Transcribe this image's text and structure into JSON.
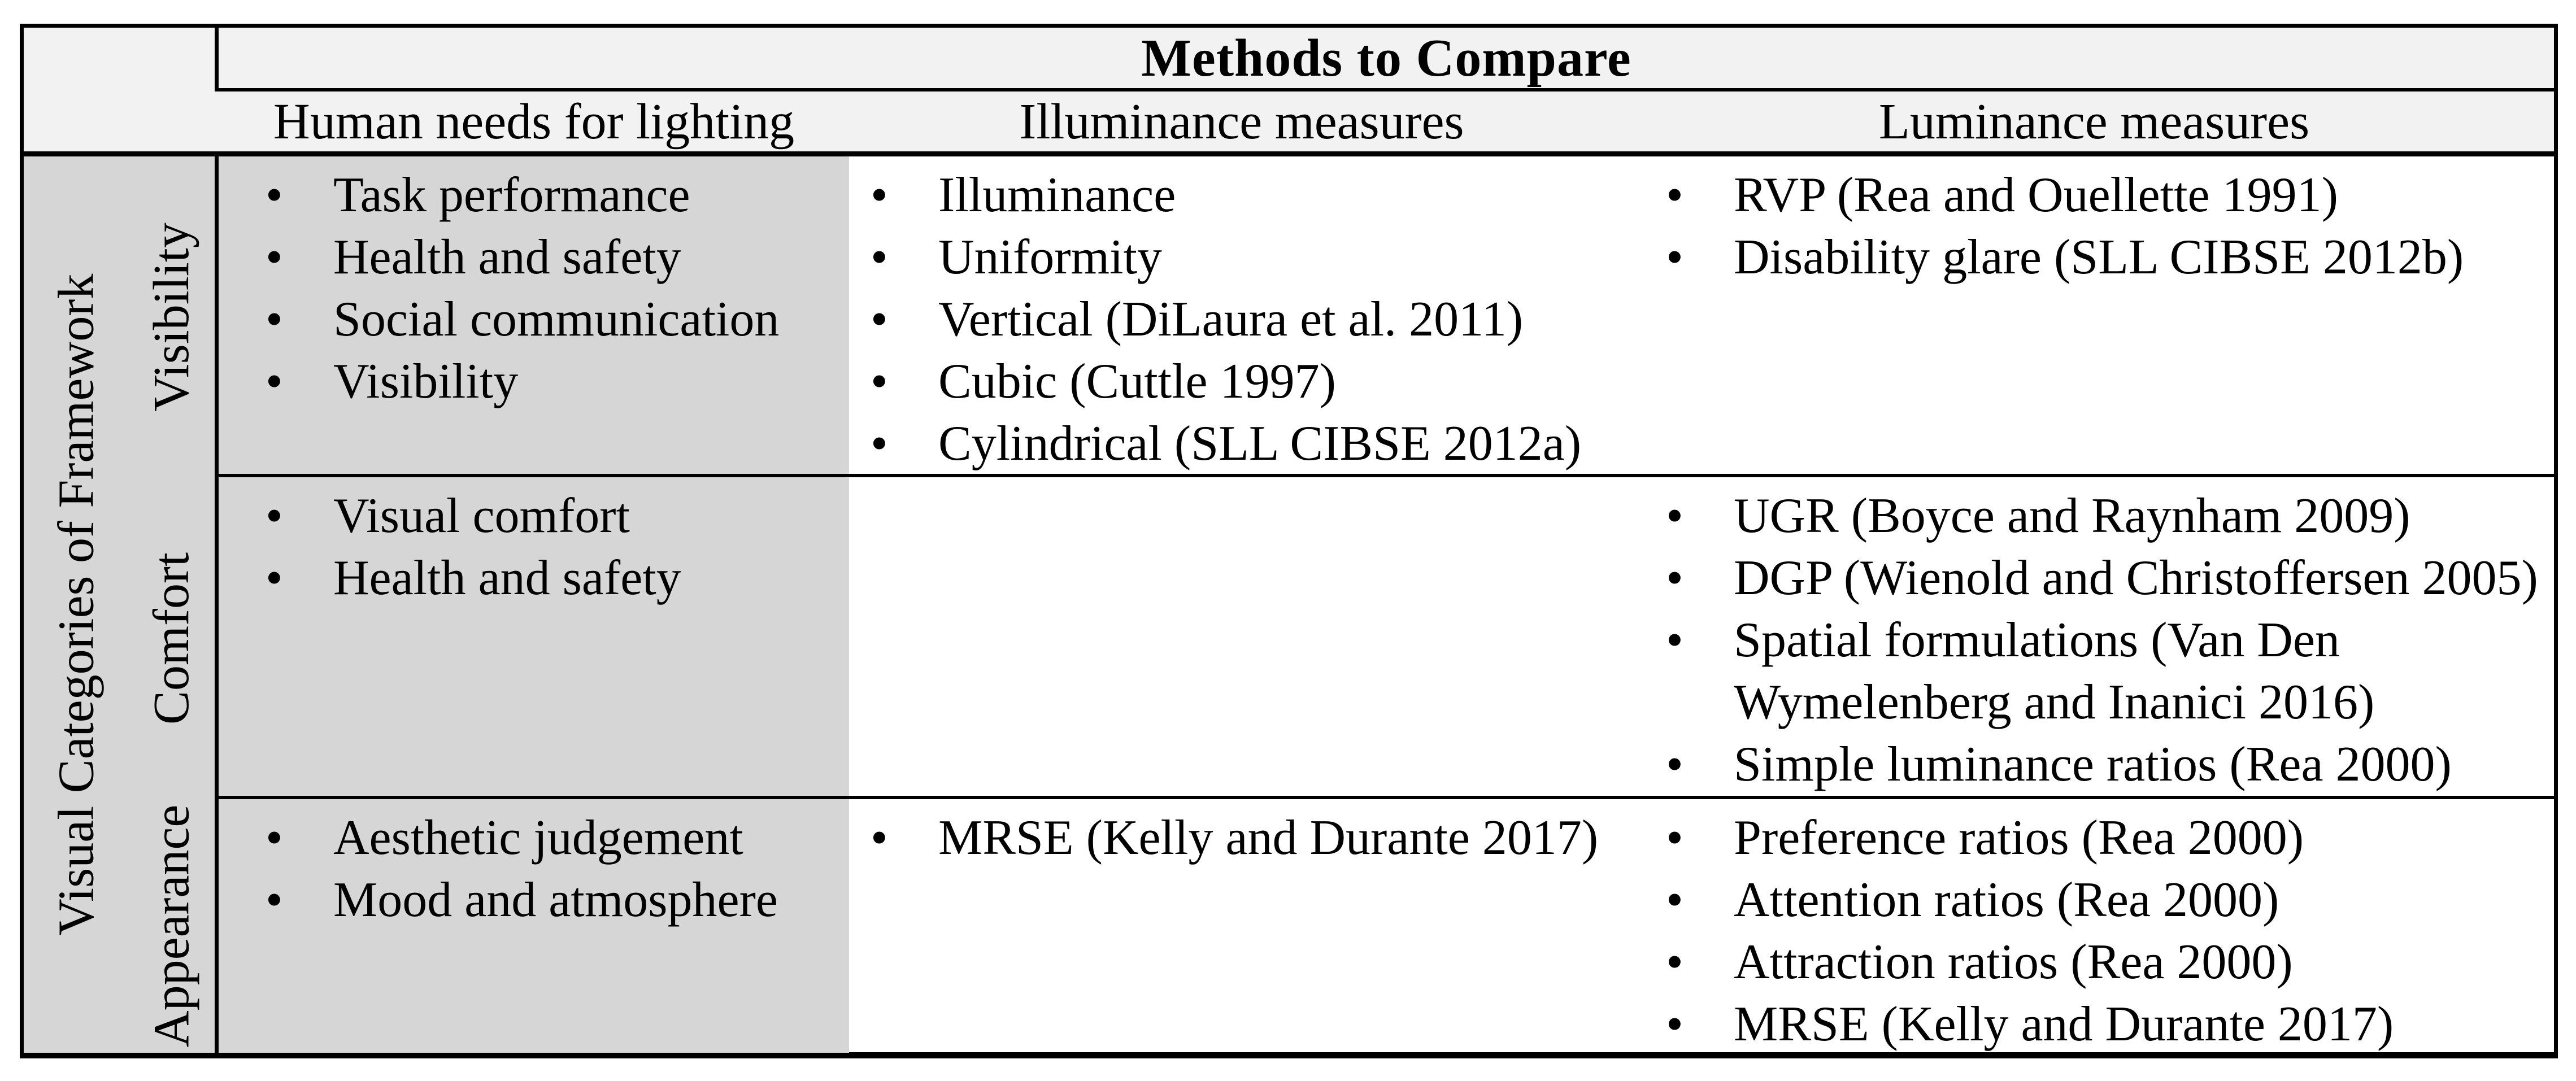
{
  "table": {
    "title": "Methods to Compare",
    "row_group_label": "Visual Categories of Framework",
    "columns": [
      {
        "label": "Human needs for lighting"
      },
      {
        "label": "Illuminance measures"
      },
      {
        "label": "Luminance measures"
      }
    ],
    "rows": [
      {
        "category": "Visibility",
        "human_needs": [
          "Task performance",
          "Health and safety",
          "Social communication",
          "Visibility"
        ],
        "illuminance": [
          "Illuminance",
          "Uniformity",
          "Vertical (DiLaura et al. 2011)",
          "Cubic (Cuttle 1997)",
          "Cylindrical (SLL CIBSE 2012a)"
        ],
        "luminance": [
          "RVP (Rea and Ouellette 1991)",
          "Disability glare (SLL CIBSE 2012b)"
        ]
      },
      {
        "category": "Comfort",
        "human_needs": [
          "Visual comfort",
          "Health and safety"
        ],
        "illuminance": [],
        "luminance": [
          "UGR (Boyce and Raynham 2009)",
          "DGP (Wienold and Christoffersen 2005)",
          "Spatial formulations (Van Den Wymelenberg and Inanici 2016)",
          "Simple luminance ratios (Rea 2000)"
        ]
      },
      {
        "category": "Appearance",
        "human_needs": [
          "Aesthetic judgement",
          "Mood and atmosphere"
        ],
        "illuminance": [
          "MRSE (Kelly and Durante 2017)"
        ],
        "luminance": [
          "Preference ratios (Rea 2000)",
          "Attention ratios (Rea 2000)",
          "Attraction ratios (Rea 2000)",
          "MRSE (Kelly and Durante 2017)"
        ]
      }
    ],
    "colors": {
      "header_bg": "#f2f2f2",
      "shaded_bg": "#d6d6d6",
      "border": "#000000",
      "page_bg": "#ffffff"
    },
    "bullet_icon": "•"
  }
}
